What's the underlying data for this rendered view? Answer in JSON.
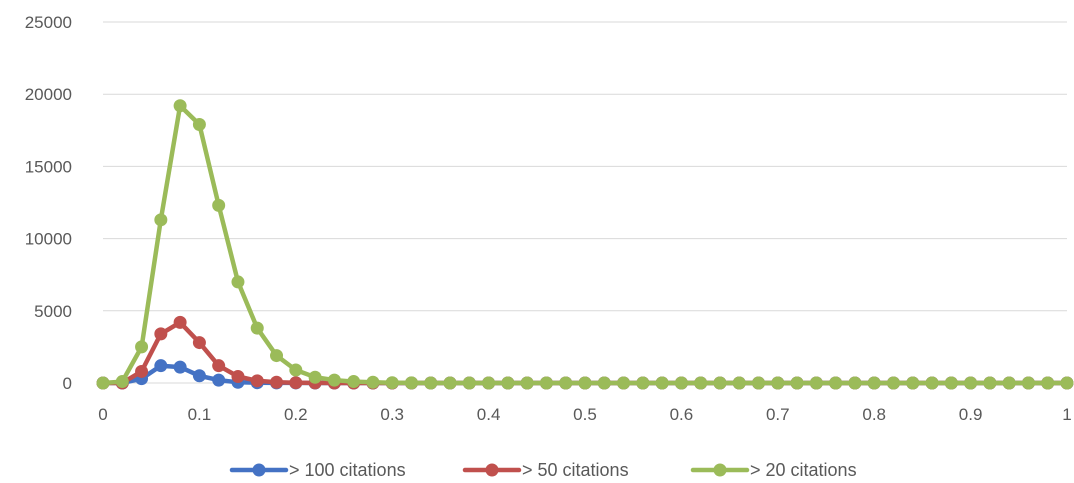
{
  "chart_data": {
    "type": "line",
    "title": "",
    "xlabel": "",
    "ylabel": "",
    "xlim": [
      0,
      1
    ],
    "ylim": [
      0,
      25000
    ],
    "grid": true,
    "legend_position": "bottom",
    "x_ticks": [
      "0",
      "0.1",
      "0.2",
      "0.3",
      "0.4",
      "0.5",
      "0.6",
      "0.7",
      "0.8",
      "0.9",
      "1"
    ],
    "y_ticks": [
      "0",
      "5000",
      "10000",
      "15000",
      "20000",
      "25000"
    ],
    "x": [
      0,
      0.02,
      0.04,
      0.06,
      0.08,
      0.1,
      0.12,
      0.14,
      0.16,
      0.18,
      0.2,
      0.22,
      0.24,
      0.26,
      0.28,
      0.3,
      0.32,
      0.34,
      0.36,
      0.38,
      0.4,
      0.42,
      0.44,
      0.46,
      0.48,
      0.5,
      0.52,
      0.54,
      0.56,
      0.58,
      0.6,
      0.62,
      0.64,
      0.66,
      0.68,
      0.7,
      0.72,
      0.74,
      0.76,
      0.78,
      0.8,
      0.82,
      0.84,
      0.86,
      0.88,
      0.9,
      0.92,
      0.94,
      0.96,
      0.98,
      1
    ],
    "series": [
      {
        "name": "> 100 citations",
        "color": "#4472c4",
        "values": [
          0,
          0,
          300,
          1200,
          1100,
          500,
          200,
          50,
          20,
          10,
          5,
          0,
          0,
          0,
          0,
          0,
          0,
          0,
          0,
          0,
          0,
          0,
          0,
          0,
          0,
          0,
          0,
          0,
          0,
          0,
          0,
          0,
          0,
          0,
          0,
          0,
          0,
          0,
          0,
          0,
          0,
          0,
          0,
          0,
          0,
          0,
          0,
          0,
          0,
          0,
          0
        ]
      },
      {
        "name": "> 50 citations",
        "color": "#c0504d",
        "values": [
          0,
          0,
          800,
          3400,
          4200,
          2800,
          1200,
          450,
          150,
          50,
          20,
          10,
          0,
          0,
          0,
          0,
          0,
          0,
          0,
          0,
          0,
          0,
          0,
          0,
          0,
          0,
          0,
          0,
          0,
          0,
          0,
          0,
          0,
          0,
          0,
          0,
          0,
          0,
          0,
          0,
          0,
          0,
          0,
          0,
          0,
          0,
          0,
          0,
          0,
          0,
          0
        ]
      },
      {
        "name": "> 20 citations",
        "color": "#9bbb59",
        "values": [
          0,
          100,
          2500,
          11300,
          19200,
          17900,
          12300,
          7000,
          3800,
          1900,
          900,
          400,
          200,
          100,
          50,
          20,
          10,
          0,
          0,
          0,
          0,
          0,
          0,
          0,
          0,
          0,
          0,
          0,
          0,
          0,
          0,
          0,
          0,
          0,
          0,
          0,
          0,
          0,
          0,
          0,
          0,
          0,
          0,
          0,
          0,
          0,
          0,
          0,
          0,
          0,
          0
        ]
      }
    ]
  }
}
